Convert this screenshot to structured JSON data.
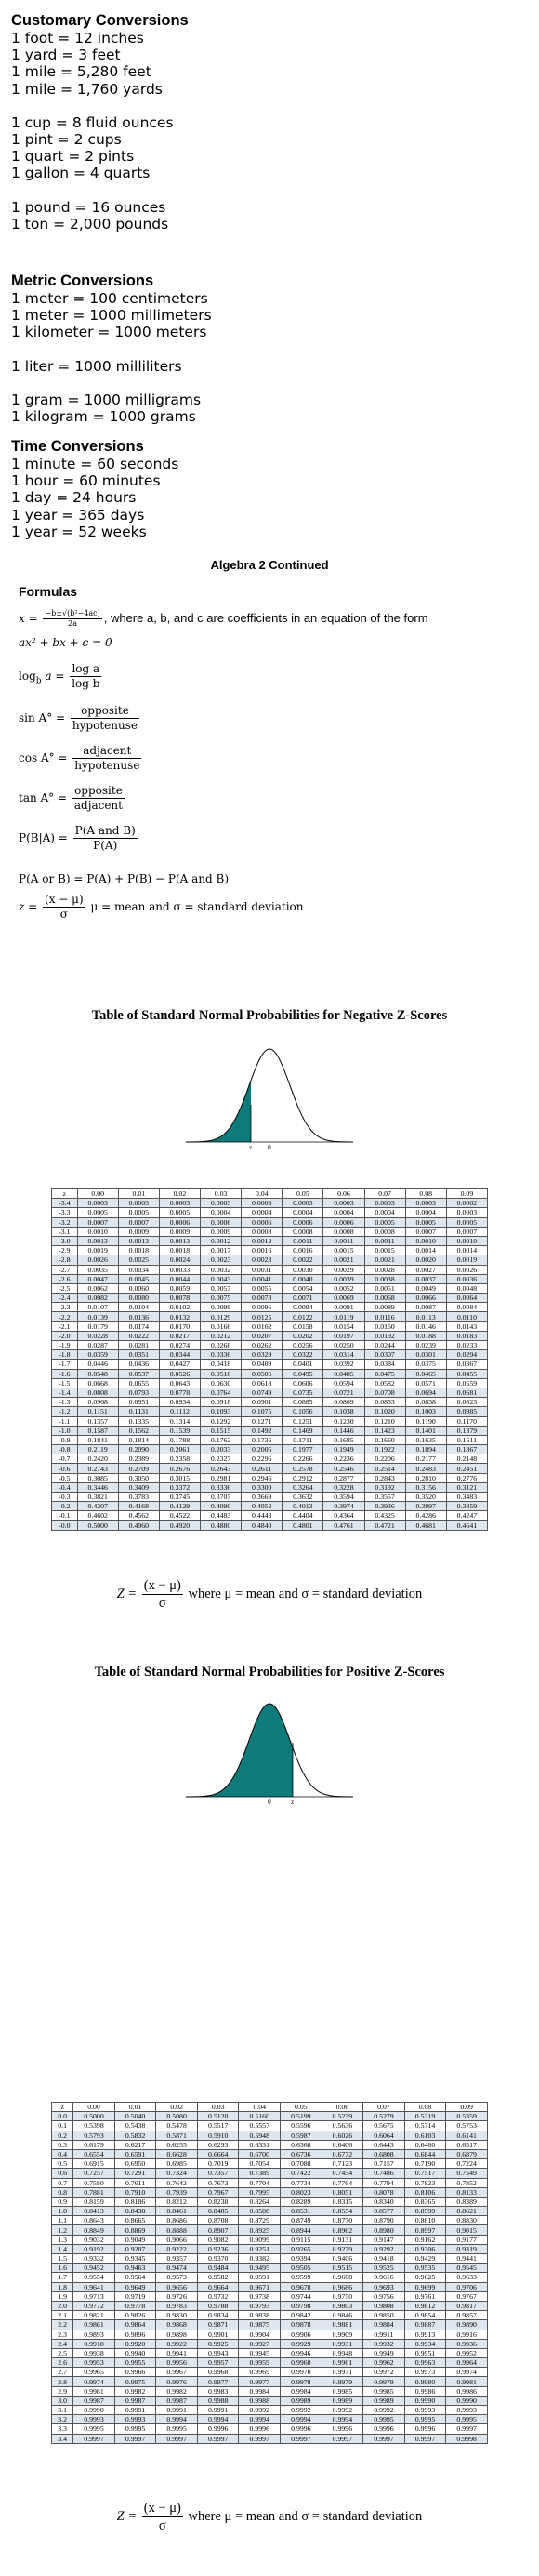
{
  "customary": {
    "heading": "Customary Conversions",
    "groups": [
      [
        "1 foot = 12 inches",
        "1 yard = 3 feet",
        "1 mile = 5,280 feet",
        "1 mile = 1,760 yards"
      ],
      [
        "1 cup = 8 fluid ounces",
        "1 pint = 2 cups",
        "1 quart = 2 pints",
        "1 gallon = 4 quarts"
      ],
      [
        "1 pound = 16 ounces",
        "1 ton = 2,000 pounds"
      ]
    ]
  },
  "metric": {
    "heading": "Metric Conversions",
    "groups": [
      [
        "1 meter = 100 centimeters",
        "1 meter = 1000 millimeters",
        "1 kilometer = 1000 meters"
      ],
      [
        "1 liter = 1000 milliliters"
      ],
      [
        "1 gram = 1000 milligrams",
        "1 kilogram = 1000 grams"
      ]
    ]
  },
  "time": {
    "heading": "Time Conversions",
    "groups": [
      [
        "1 minute = 60 seconds",
        "1 hour = 60 minutes",
        "1 day = 24 hours",
        "1 year = 365 days",
        "1 year = 52 weeks"
      ]
    ]
  },
  "algebra": {
    "title": "Algebra 2 Continued",
    "formulas_heading": "Formulas",
    "quadratic": {
      "lhs": "x =",
      "num": "−b±√(b²−4ac)",
      "den": "2a",
      "text": ", where a, b, and c are coefficients in an equation of the form",
      "line2": "ax² + bx + c = 0"
    },
    "log": {
      "lhs": "log",
      "sub": "b",
      "var": "a =",
      "num": "log a",
      "den": "log b"
    },
    "sin": {
      "lhs": "sin A° =",
      "num": "opposite",
      "den": "hypotenuse"
    },
    "cos": {
      "lhs": "cos A° =",
      "num": "adjacent",
      "den": "hypotenuse"
    },
    "tan": {
      "lhs": "tan A° =",
      "num": "opposite",
      "den": "adjacent"
    },
    "cond": {
      "lhs": "P(B|A) =",
      "num": "P(A and B)",
      "den": "P(A)"
    },
    "or": {
      "text": "P(A or B) = P(A) + P(B) − P(A and B)"
    },
    "z": {
      "lhs": "z =",
      "num": "(x − μ)",
      "den": "σ",
      "text": "μ = mean and σ = standard deviation"
    }
  },
  "negative_table": {
    "title": "Table of Standard Normal Probabilities for Negative Z-Scores",
    "columns": [
      "z",
      "0.00",
      "0.01",
      "0.02",
      "0.03",
      "0.04",
      "0.05",
      "0.06",
      "0.07",
      "0.08",
      "0.09"
    ],
    "rows": [
      [
        "-3.4",
        "0.0003",
        "0.0003",
        "0.0003",
        "0.0003",
        "0.0003",
        "0.0003",
        "0.0003",
        "0.0003",
        "0.0003",
        "0.0002"
      ],
      [
        "-3.3",
        "0.0005",
        "0.0005",
        "0.0005",
        "0.0004",
        "0.0004",
        "0.0004",
        "0.0004",
        "0.0004",
        "0.0004",
        "0.0003"
      ],
      [
        "-3.2",
        "0.0007",
        "0.0007",
        "0.0006",
        "0.0006",
        "0.0006",
        "0.0006",
        "0.0006",
        "0.0005",
        "0.0005",
        "0.0005"
      ],
      [
        "-3.1",
        "0.0010",
        "0.0009",
        "0.0009",
        "0.0009",
        "0.0008",
        "0.0008",
        "0.0008",
        "0.0008",
        "0.0007",
        "0.0007"
      ],
      [
        "-3.0",
        "0.0013",
        "0.0013",
        "0.0013",
        "0.0012",
        "0.0012",
        "0.0011",
        "0.0011",
        "0.0011",
        "0.0010",
        "0.0010"
      ],
      [
        "-2.9",
        "0.0019",
        "0.0018",
        "0.0018",
        "0.0017",
        "0.0016",
        "0.0016",
        "0.0015",
        "0.0015",
        "0.0014",
        "0.0014"
      ],
      [
        "-2.8",
        "0.0026",
        "0.0025",
        "0.0024",
        "0.0023",
        "0.0023",
        "0.0022",
        "0.0021",
        "0.0021",
        "0.0020",
        "0.0019"
      ],
      [
        "-2.7",
        "0.0035",
        "0.0034",
        "0.0033",
        "0.0032",
        "0.0031",
        "0.0030",
        "0.0029",
        "0.0028",
        "0.0027",
        "0.0026"
      ],
      [
        "-2.6",
        "0.0047",
        "0.0045",
        "0.0044",
        "0.0043",
        "0.0041",
        "0.0040",
        "0.0039",
        "0.0038",
        "0.0037",
        "0.0036"
      ],
      [
        "-2.5",
        "0.0062",
        "0.0060",
        "0.0059",
        "0.0057",
        "0.0055",
        "0.0054",
        "0.0052",
        "0.0051",
        "0.0049",
        "0.0048"
      ],
      [
        "-2.4",
        "0.0082",
        "0.0080",
        "0.0078",
        "0.0075",
        "0.0073",
        "0.0071",
        "0.0069",
        "0.0068",
        "0.0066",
        "0.0064"
      ],
      [
        "-2.3",
        "0.0107",
        "0.0104",
        "0.0102",
        "0.0099",
        "0.0096",
        "0.0094",
        "0.0091",
        "0.0089",
        "0.0087",
        "0.0084"
      ],
      [
        "-2.2",
        "0.0139",
        "0.0136",
        "0.0132",
        "0.0129",
        "0.0125",
        "0.0122",
        "0.0119",
        "0.0116",
        "0.0113",
        "0.0110"
      ],
      [
        "-2.1",
        "0.0179",
        "0.0174",
        "0.0170",
        "0.0166",
        "0.0162",
        "0.0158",
        "0.0154",
        "0.0150",
        "0.0146",
        "0.0143"
      ],
      [
        "-2.0",
        "0.0228",
        "0.0222",
        "0.0217",
        "0.0212",
        "0.0207",
        "0.0202",
        "0.0197",
        "0.0192",
        "0.0188",
        "0.0183"
      ],
      [
        "-1.9",
        "0.0287",
        "0.0281",
        "0.0274",
        "0.0268",
        "0.0262",
        "0.0256",
        "0.0250",
        "0.0244",
        "0.0239",
        "0.0233"
      ],
      [
        "-1.8",
        "0.0359",
        "0.0351",
        "0.0344",
        "0.0336",
        "0.0329",
        "0.0322",
        "0.0314",
        "0.0307",
        "0.0301",
        "0.0294"
      ],
      [
        "-1.7",
        "0.0446",
        "0.0436",
        "0.0427",
        "0.0418",
        "0.0409",
        "0.0401",
        "0.0392",
        "0.0384",
        "0.0375",
        "0.0367"
      ],
      [
        "-1.6",
        "0.0548",
        "0.0537",
        "0.0526",
        "0.0516",
        "0.0505",
        "0.0495",
        "0.0485",
        "0.0475",
        "0.0465",
        "0.0455"
      ],
      [
        "-1.5",
        "0.0668",
        "0.0655",
        "0.0643",
        "0.0630",
        "0.0618",
        "0.0606",
        "0.0594",
        "0.0582",
        "0.0571",
        "0.0559"
      ],
      [
        "-1.4",
        "0.0808",
        "0.0793",
        "0.0778",
        "0.0764",
        "0.0749",
        "0.0735",
        "0.0721",
        "0.0708",
        "0.0694",
        "0.0681"
      ],
      [
        "-1.3",
        "0.0968",
        "0.0951",
        "0.0934",
        "0.0918",
        "0.0901",
        "0.0885",
        "0.0869",
        "0.0853",
        "0.0838",
        "0.0823"
      ],
      [
        "-1.2",
        "0.1151",
        "0.1131",
        "0.1112",
        "0.1093",
        "0.1075",
        "0.1056",
        "0.1038",
        "0.1020",
        "0.1003",
        "0.0985"
      ],
      [
        "-1.1",
        "0.1357",
        "0.1335",
        "0.1314",
        "0.1292",
        "0.1271",
        "0.1251",
        "0.1230",
        "0.1210",
        "0.1190",
        "0.1170"
      ],
      [
        "-1.0",
        "0.1587",
        "0.1562",
        "0.1539",
        "0.1515",
        "0.1492",
        "0.1469",
        "0.1446",
        "0.1423",
        "0.1401",
        "0.1379"
      ],
      [
        "-0.9",
        "0.1841",
        "0.1814",
        "0.1788",
        "0.1762",
        "0.1736",
        "0.1711",
        "0.1685",
        "0.1660",
        "0.1635",
        "0.1611"
      ],
      [
        "-0.8",
        "0.2119",
        "0.2090",
        "0.2061",
        "0.2033",
        "0.2005",
        "0.1977",
        "0.1949",
        "0.1922",
        "0.1894",
        "0.1867"
      ],
      [
        "-0.7",
        "0.2420",
        "0.2389",
        "0.2358",
        "0.2327",
        "0.2296",
        "0.2266",
        "0.2236",
        "0.2206",
        "0.2177",
        "0.2148"
      ],
      [
        "-0.6",
        "0.2743",
        "0.2709",
        "0.2676",
        "0.2643",
        "0.2611",
        "0.2578",
        "0.2546",
        "0.2514",
        "0.2483",
        "0.2451"
      ],
      [
        "-0.5",
        "0.3085",
        "0.3050",
        "0.3015",
        "0.2981",
        "0.2946",
        "0.2912",
        "0.2877",
        "0.2843",
        "0.2810",
        "0.2776"
      ],
      [
        "-0.4",
        "0.3446",
        "0.3409",
        "0.3372",
        "0.3336",
        "0.3300",
        "0.3264",
        "0.3228",
        "0.3192",
        "0.3156",
        "0.3121"
      ],
      [
        "-0.3",
        "0.3821",
        "0.3783",
        "0.3745",
        "0.3707",
        "0.3669",
        "0.3632",
        "0.3594",
        "0.3557",
        "0.3520",
        "0.3483"
      ],
      [
        "-0.2",
        "0.4207",
        "0.4168",
        "0.4129",
        "0.4090",
        "0.4052",
        "0.4013",
        "0.3974",
        "0.3936",
        "0.3897",
        "0.3859"
      ],
      [
        "-0.1",
        "0.4602",
        "0.4562",
        "0.4522",
        "0.4483",
        "0.4443",
        "0.4404",
        "0.4364",
        "0.4325",
        "0.4286",
        "0.4247"
      ],
      [
        "-0.0",
        "0.5000",
        "0.4960",
        "0.4920",
        "0.4880",
        "0.4840",
        "0.4801",
        "0.4761",
        "0.4721",
        "0.4681",
        "0.4641"
      ]
    ]
  },
  "negative_z_formula": {
    "lhs": "Z =",
    "num": "(x − μ)",
    "den": "σ",
    "text": "where μ = mean and σ = standard deviation"
  },
  "positive_table": {
    "title": "Table of Standard Normal Probabilities for Positive Z-Scores",
    "columns": [
      "z",
      "0.00",
      "0.01",
      "0.02",
      "0.03",
      "0.04",
      "0.05",
      "0.06",
      "0.07",
      "0.08",
      "0.09"
    ],
    "rows": [
      [
        "0.0",
        "0.5000",
        "0.5040",
        "0.5080",
        "0.5120",
        "0.5160",
        "0.5199",
        "0.5239",
        "0.5279",
        "0.5319",
        "0.5359"
      ],
      [
        "0.1",
        "0.5398",
        "0.5438",
        "0.5478",
        "0.5517",
        "0.5557",
        "0.5596",
        "0.5636",
        "0.5675",
        "0.5714",
        "0.5753"
      ],
      [
        "0.2",
        "0.5793",
        "0.5832",
        "0.5871",
        "0.5910",
        "0.5948",
        "0.5987",
        "0.6026",
        "0.6064",
        "0.6103",
        "0.6141"
      ],
      [
        "0.3",
        "0.6179",
        "0.6217",
        "0.6255",
        "0.6293",
        "0.6331",
        "0.6368",
        "0.6406",
        "0.6443",
        "0.6480",
        "0.6517"
      ],
      [
        "0.4",
        "0.6554",
        "0.6591",
        "0.6628",
        "0.6664",
        "0.6700",
        "0.6736",
        "0.6772",
        "0.6808",
        "0.6844",
        "0.6879"
      ],
      [
        "0.5",
        "0.6915",
        "0.6950",
        "0.6985",
        "0.7019",
        "0.7054",
        "0.7088",
        "0.7123",
        "0.7157",
        "0.7190",
        "0.7224"
      ],
      [
        "0.6",
        "0.7257",
        "0.7291",
        "0.7324",
        "0.7357",
        "0.7389",
        "0.7422",
        "0.7454",
        "0.7486",
        "0.7517",
        "0.7549"
      ],
      [
        "0.7",
        "0.7580",
        "0.7611",
        "0.7642",
        "0.7673",
        "0.7704",
        "0.7734",
        "0.7764",
        "0.7794",
        "0.7823",
        "0.7852"
      ],
      [
        "0.8",
        "0.7881",
        "0.7910",
        "0.7939",
        "0.7967",
        "0.7995",
        "0.8023",
        "0.8051",
        "0.8078",
        "0.8106",
        "0.8133"
      ],
      [
        "0.9",
        "0.8159",
        "0.8186",
        "0.8212",
        "0.8238",
        "0.8264",
        "0.8289",
        "0.8315",
        "0.8340",
        "0.8365",
        "0.8389"
      ],
      [
        "1.0",
        "0.8413",
        "0.8438",
        "0.8461",
        "0.8485",
        "0.8508",
        "0.8531",
        "0.8554",
        "0.8577",
        "0.8599",
        "0.8621"
      ],
      [
        "1.1",
        "0.8643",
        "0.8665",
        "0.8686",
        "0.8708",
        "0.8729",
        "0.8749",
        "0.8770",
        "0.8790",
        "0.8810",
        "0.8830"
      ],
      [
        "1.2",
        "0.8849",
        "0.8869",
        "0.8888",
        "0.8907",
        "0.8925",
        "0.8944",
        "0.8962",
        "0.8980",
        "0.8997",
        "0.9015"
      ],
      [
        "1.3",
        "0.9032",
        "0.9049",
        "0.9066",
        "0.9082",
        "0.9099",
        "0.9115",
        "0.9131",
        "0.9147",
        "0.9162",
        "0.9177"
      ],
      [
        "1.4",
        "0.9192",
        "0.9207",
        "0.9222",
        "0.9236",
        "0.9251",
        "0.9265",
        "0.9279",
        "0.9292",
        "0.9306",
        "0.9319"
      ],
      [
        "1.5",
        "0.9332",
        "0.9345",
        "0.9357",
        "0.9370",
        "0.9382",
        "0.9394",
        "0.9406",
        "0.9418",
        "0.9429",
        "0.9441"
      ],
      [
        "1.6",
        "0.9452",
        "0.9463",
        "0.9474",
        "0.9484",
        "0.9495",
        "0.9505",
        "0.9515",
        "0.9525",
        "0.9535",
        "0.9545"
      ],
      [
        "1.7",
        "0.9554",
        "0.9564",
        "0.9573",
        "0.9582",
        "0.9591",
        "0.9599",
        "0.9608",
        "0.9616",
        "0.9625",
        "0.9633"
      ],
      [
        "1.8",
        "0.9641",
        "0.9649",
        "0.9656",
        "0.9664",
        "0.9671",
        "0.9678",
        "0.9686",
        "0.9693",
        "0.9699",
        "0.9706"
      ],
      [
        "1.9",
        "0.9713",
        "0.9719",
        "0.9726",
        "0.9732",
        "0.9738",
        "0.9744",
        "0.9750",
        "0.9756",
        "0.9761",
        "0.9767"
      ],
      [
        "2.0",
        "0.9772",
        "0.9778",
        "0.9783",
        "0.9788",
        "0.9793",
        "0.9798",
        "0.9803",
        "0.9808",
        "0.9812",
        "0.9817"
      ],
      [
        "2.1",
        "0.9821",
        "0.9826",
        "0.9830",
        "0.9834",
        "0.9838",
        "0.9842",
        "0.9846",
        "0.9850",
        "0.9854",
        "0.9857"
      ],
      [
        "2.2",
        "0.9861",
        "0.9864",
        "0.9868",
        "0.9871",
        "0.9875",
        "0.9878",
        "0.9881",
        "0.9884",
        "0.9887",
        "0.9890"
      ],
      [
        "2.3",
        "0.9893",
        "0.9896",
        "0.9898",
        "0.9901",
        "0.9904",
        "0.9906",
        "0.9909",
        "0.9911",
        "0.9913",
        "0.9916"
      ],
      [
        "2.4",
        "0.9918",
        "0.9920",
        "0.9922",
        "0.9925",
        "0.9927",
        "0.9929",
        "0.9931",
        "0.9932",
        "0.9934",
        "0.9936"
      ],
      [
        "2.5",
        "0.9938",
        "0.9940",
        "0.9941",
        "0.9943",
        "0.9945",
        "0.9946",
        "0.9948",
        "0.9949",
        "0.9951",
        "0.9952"
      ],
      [
        "2.6",
        "0.9953",
        "0.9955",
        "0.9956",
        "0.9957",
        "0.9959",
        "0.9960",
        "0.9961",
        "0.9962",
        "0.9963",
        "0.9964"
      ],
      [
        "2.7",
        "0.9965",
        "0.9966",
        "0.9967",
        "0.9968",
        "0.9969",
        "0.9970",
        "0.9971",
        "0.9972",
        "0.9973",
        "0.9974"
      ],
      [
        "2.8",
        "0.9974",
        "0.9975",
        "0.9976",
        "0.9977",
        "0.9977",
        "0.9978",
        "0.9979",
        "0.9979",
        "0.9980",
        "0.9981"
      ],
      [
        "2.9",
        "0.9981",
        "0.9982",
        "0.9982",
        "0.9983",
        "0.9984",
        "0.9984",
        "0.9985",
        "0.9985",
        "0.9986",
        "0.9986"
      ],
      [
        "3.0",
        "0.9987",
        "0.9987",
        "0.9987",
        "0.9988",
        "0.9988",
        "0.9989",
        "0.9989",
        "0.9989",
        "0.9990",
        "0.9990"
      ],
      [
        "3.1",
        "0.9990",
        "0.9991",
        "0.9991",
        "0.9991",
        "0.9992",
        "0.9992",
        "0.9992",
        "0.9992",
        "0.9993",
        "0.9993"
      ],
      [
        "3.2",
        "0.9993",
        "0.9993",
        "0.9994",
        "0.9994",
        "0.9994",
        "0.9994",
        "0.9994",
        "0.9995",
        "0.9995",
        "0.9995"
      ],
      [
        "3.3",
        "0.9995",
        "0.9995",
        "0.9995",
        "0.9996",
        "0.9996",
        "0.9996",
        "0.9996",
        "0.9996",
        "0.9996",
        "0.9997"
      ],
      [
        "3.4",
        "0.9997",
        "0.9997",
        "0.9997",
        "0.9997",
        "0.9997",
        "0.9997",
        "0.9997",
        "0.9997",
        "0.9997",
        "0.9998"
      ]
    ]
  },
  "positive_z_formula": {
    "lhs": "Z =",
    "num": "(x − μ)",
    "den": "σ",
    "text": "where μ = mean and σ = standard deviation"
  },
  "colors": {
    "shade": "#0e7a7a",
    "row_alt": "#dfe7ee"
  },
  "curve_labels": {
    "neg_z": "z",
    "neg_zero": "0",
    "pos_zero": "0",
    "pos_z": "z"
  }
}
